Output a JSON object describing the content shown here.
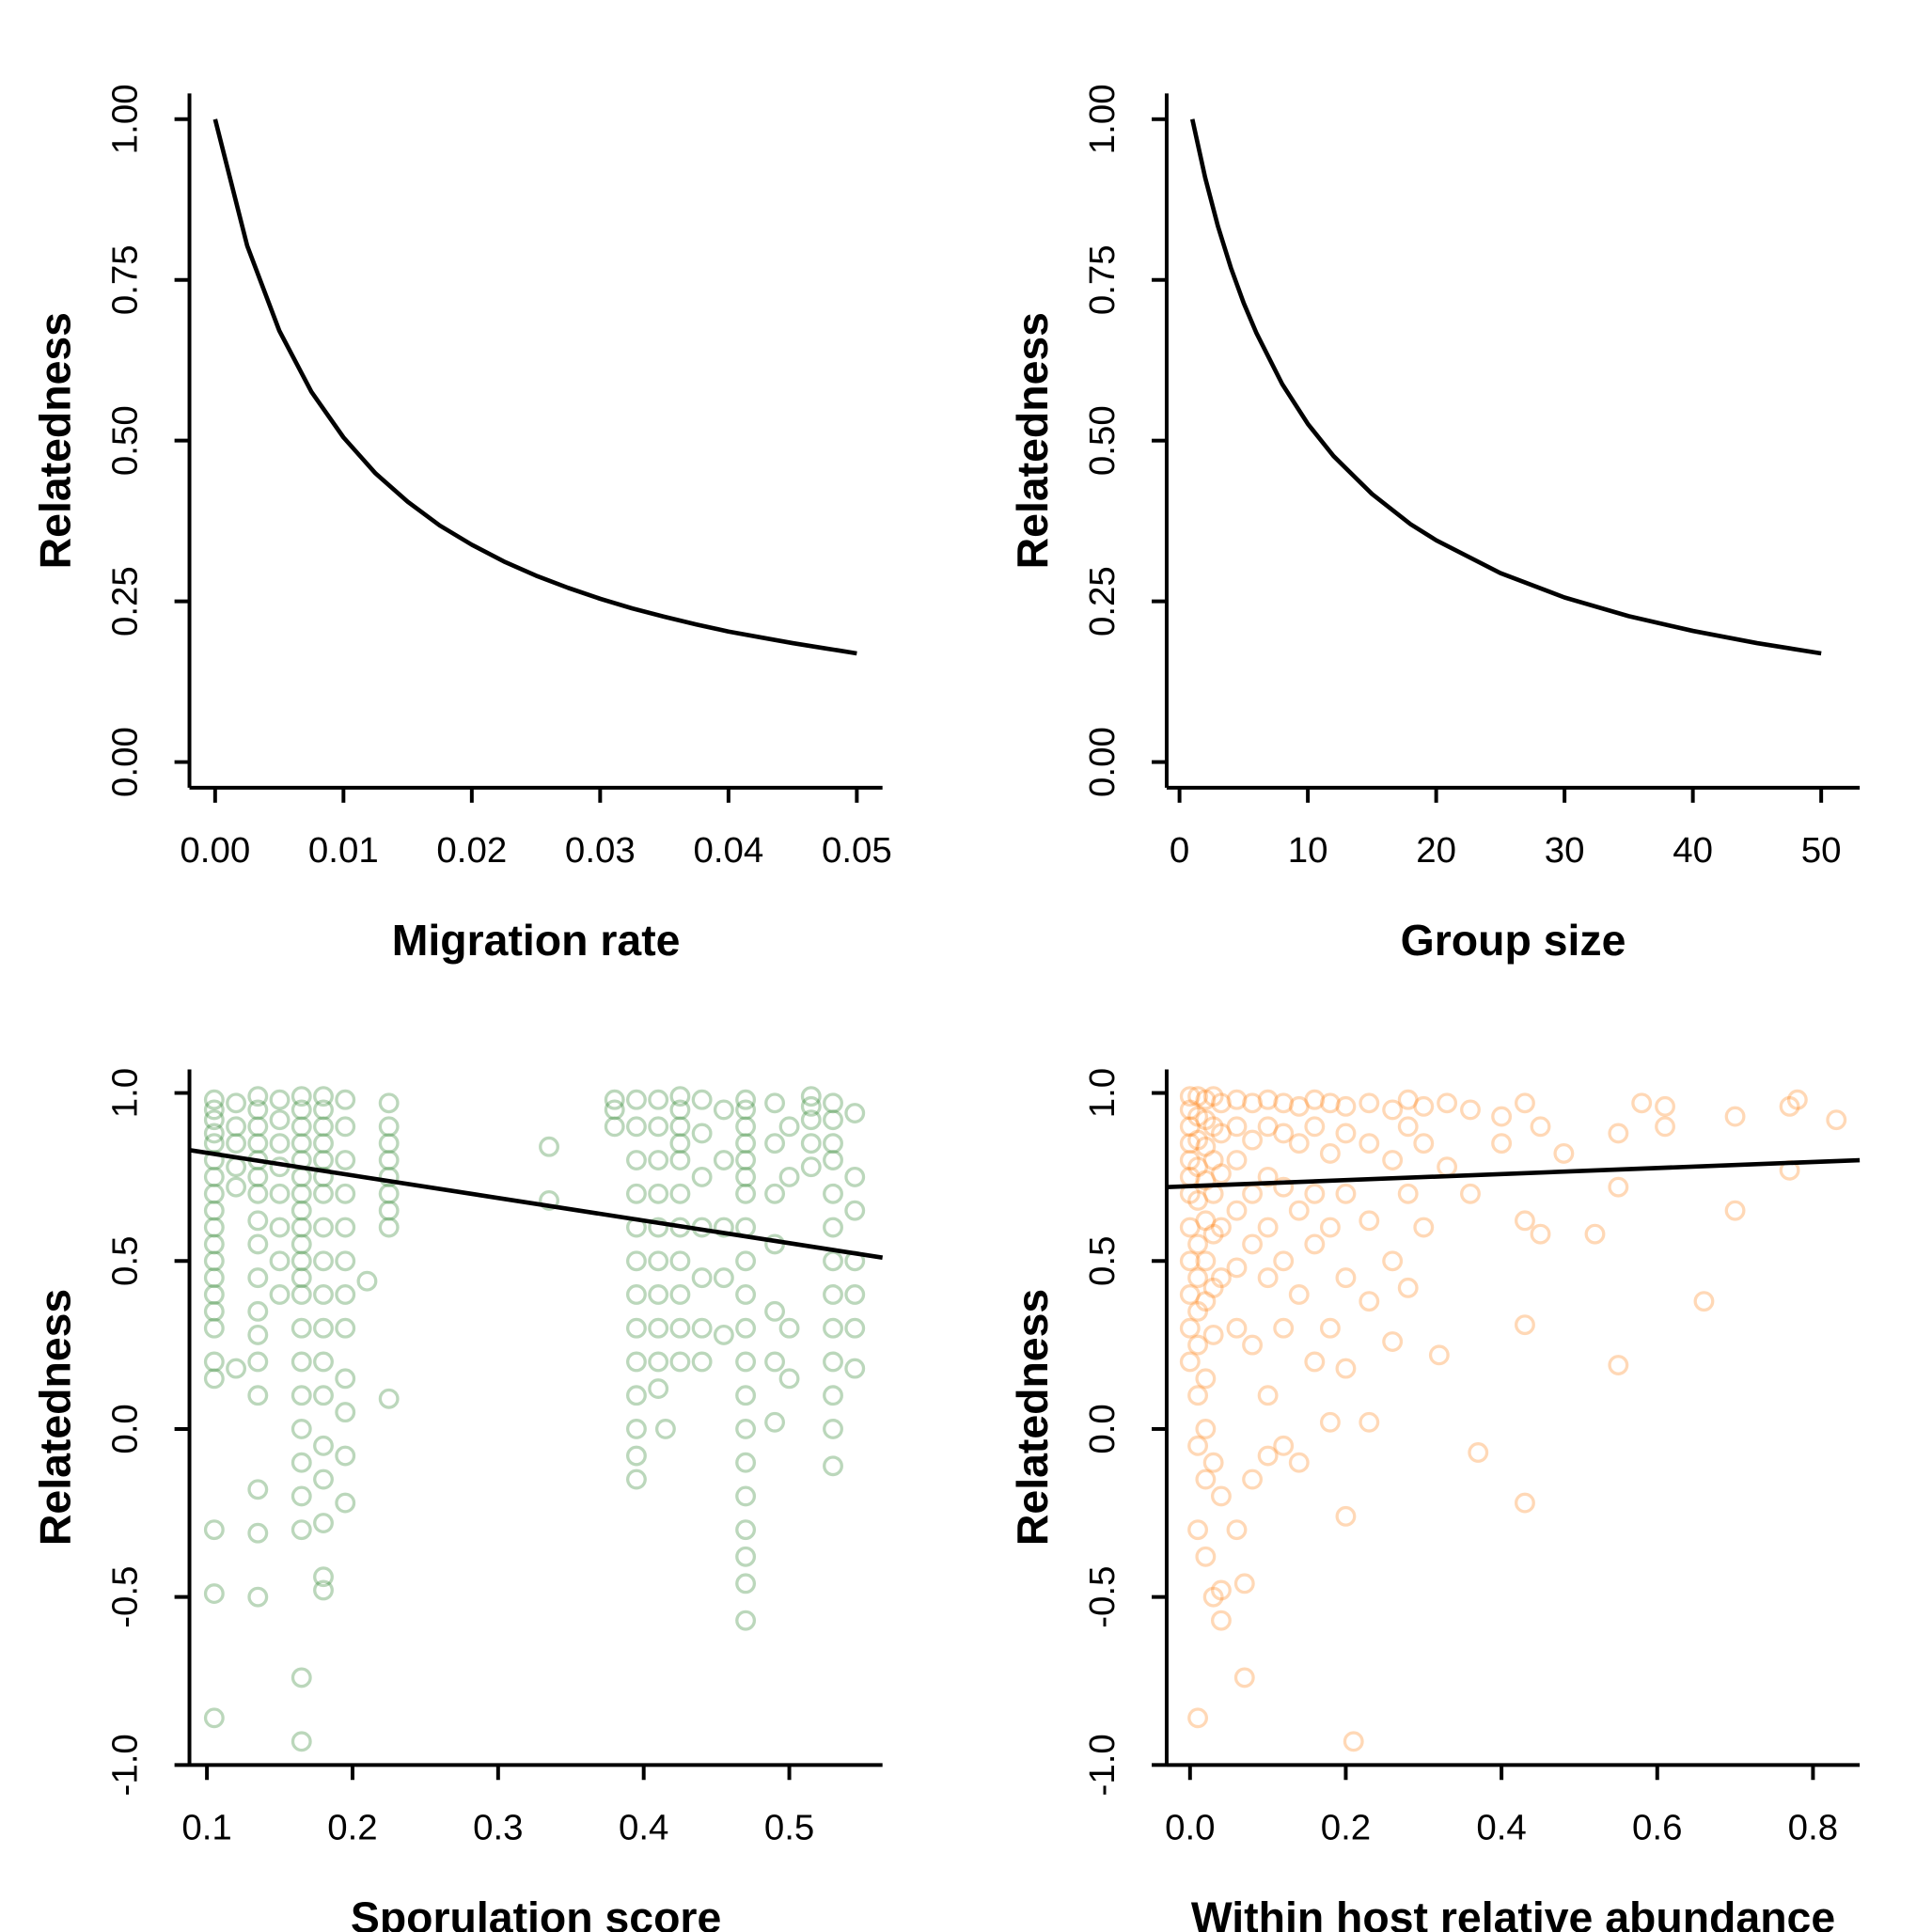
{
  "chart_data": [
    {
      "type": "line",
      "xlabel": "Migration rate",
      "ylabel": "Relatedness",
      "color": "#000000",
      "x": [
        0,
        0.0025,
        0.005,
        0.0075,
        0.01,
        0.0125,
        0.015,
        0.0175,
        0.02,
        0.0225,
        0.025,
        0.0275,
        0.03,
        0.0325,
        0.035,
        0.0375,
        0.04,
        0.0425,
        0.045,
        0.0475,
        0.05
      ],
      "values": [
        1,
        0.803,
        0.671,
        0.576,
        0.505,
        0.449,
        0.405,
        0.368,
        0.338,
        0.312,
        0.29,
        0.271,
        0.254,
        0.239,
        0.226,
        0.214,
        0.203,
        0.194,
        0.185,
        0.177,
        0.169
      ],
      "xlim": [
        -0.002,
        0.052
      ],
      "ylim": [
        -0.04,
        1.04
      ],
      "xticks": [
        {
          "value": 0,
          "label": "0.00"
        },
        {
          "value": 0.01,
          "label": "0.01"
        },
        {
          "value": 0.02,
          "label": "0.02"
        },
        {
          "value": 0.03,
          "label": "0.03"
        },
        {
          "value": 0.04,
          "label": "0.04"
        },
        {
          "value": 0.05,
          "label": "0.05"
        }
      ],
      "yticks": [
        {
          "value": 0,
          "label": "0.00"
        },
        {
          "value": 0.25,
          "label": "0.25"
        },
        {
          "value": 0.5,
          "label": "0.50"
        },
        {
          "value": 0.75,
          "label": "0.75"
        },
        {
          "value": 1,
          "label": "1.00"
        }
      ]
    },
    {
      "type": "line",
      "xlabel": "Group size",
      "ylabel": "Relatedness",
      "color": "#000000",
      "x": [
        1,
        2,
        3,
        4,
        5,
        6,
        8,
        10,
        12,
        15,
        18,
        20,
        25,
        30,
        35,
        40,
        45,
        50
      ],
      "values": [
        1,
        0.909,
        0.833,
        0.769,
        0.714,
        0.667,
        0.588,
        0.526,
        0.476,
        0.417,
        0.37,
        0.345,
        0.294,
        0.256,
        0.227,
        0.204,
        0.185,
        0.169
      ],
      "xlim": [
        -1,
        53
      ],
      "ylim": [
        -0.04,
        1.04
      ],
      "xticks": [
        0,
        10,
        20,
        30,
        40,
        50
      ],
      "yticks": [
        {
          "value": 0,
          "label": "0.00"
        },
        {
          "value": 0.25,
          "label": "0.25"
        },
        {
          "value": 0.5,
          "label": "0.50"
        },
        {
          "value": 0.75,
          "label": "0.75"
        },
        {
          "value": 1,
          "label": "1.00"
        }
      ]
    },
    {
      "type": "scatter",
      "xlabel": "Sporulation score",
      "ylabel": "Relatedness",
      "color": "#1f7a1f",
      "x": [
        0.105,
        0.105,
        0.105,
        0.105,
        0.105,
        0.105,
        0.105,
        0.105,
        0.105,
        0.105,
        0.105,
        0.105,
        0.105,
        0.105,
        0.105,
        0.105,
        0.105,
        0.105,
        0.105,
        0.105,
        0.105,
        0.12,
        0.12,
        0.12,
        0.12,
        0.12,
        0.12,
        0.135,
        0.135,
        0.135,
        0.135,
        0.135,
        0.135,
        0.135,
        0.135,
        0.135,
        0.135,
        0.135,
        0.135,
        0.135,
        0.135,
        0.135,
        0.135,
        0.135,
        0.15,
        0.15,
        0.15,
        0.15,
        0.15,
        0.15,
        0.15,
        0.15,
        0.165,
        0.165,
        0.165,
        0.165,
        0.165,
        0.165,
        0.165,
        0.165,
        0.165,
        0.165,
        0.165,
        0.165,
        0.165,
        0.165,
        0.165,
        0.165,
        0.165,
        0.165,
        0.165,
        0.165,
        0.165,
        0.165,
        0.18,
        0.18,
        0.18,
        0.18,
        0.18,
        0.18,
        0.18,
        0.18,
        0.18,
        0.18,
        0.18,
        0.18,
        0.18,
        0.18,
        0.18,
        0.18,
        0.18,
        0.18,
        0.195,
        0.195,
        0.195,
        0.195,
        0.195,
        0.195,
        0.195,
        0.195,
        0.195,
        0.195,
        0.195,
        0.195,
        0.225,
        0.225,
        0.225,
        0.225,
        0.225,
        0.225,
        0.225,
        0.225,
        0.225,
        0.21,
        0.335,
        0.335,
        0.38,
        0.38,
        0.38,
        0.395,
        0.395,
        0.395,
        0.395,
        0.395,
        0.395,
        0.395,
        0.395,
        0.395,
        0.395,
        0.395,
        0.395,
        0.395,
        0.41,
        0.41,
        0.41,
        0.41,
        0.41,
        0.41,
        0.41,
        0.41,
        0.41,
        0.41,
        0.415,
        0.425,
        0.425,
        0.425,
        0.425,
        0.425,
        0.425,
        0.425,
        0.425,
        0.425,
        0.425,
        0.425,
        0.44,
        0.44,
        0.44,
        0.44,
        0.44,
        0.44,
        0.44,
        0.455,
        0.455,
        0.455,
        0.455,
        0.455,
        0.47,
        0.47,
        0.47,
        0.47,
        0.47,
        0.47,
        0.47,
        0.47,
        0.47,
        0.47,
        0.47,
        0.47,
        0.47,
        0.47,
        0.47,
        0.47,
        0.47,
        0.47,
        0.47,
        0.47,
        0.49,
        0.49,
        0.49,
        0.49,
        0.49,
        0.49,
        0.49,
        0.5,
        0.5,
        0.5,
        0.5,
        0.515,
        0.515,
        0.515,
        0.515,
        0.515,
        0.53,
        0.53,
        0.53,
        0.53,
        0.53,
        0.53,
        0.53,
        0.53,
        0.53,
        0.53,
        0.53,
        0.53,
        0.53,
        0.545,
        0.545,
        0.545,
        0.545,
        0.545,
        0.545,
        0.545
      ],
      "values": [
        0.98,
        0.95,
        0.92,
        0.88,
        0.85,
        0.8,
        0.75,
        0.7,
        0.65,
        0.6,
        0.55,
        0.5,
        0.45,
        0.4,
        0.35,
        0.3,
        0.2,
        0.15,
        -0.3,
        -0.49,
        -0.86,
        0.97,
        0.9,
        0.85,
        0.78,
        0.72,
        0.18,
        0.99,
        0.95,
        0.9,
        0.85,
        0.8,
        0.75,
        0.7,
        0.62,
        0.55,
        0.45,
        0.35,
        0.28,
        0.2,
        0.1,
        -0.18,
        -0.31,
        -0.5,
        0.98,
        0.92,
        0.85,
        0.78,
        0.7,
        0.6,
        0.5,
        0.4,
        0.99,
        0.95,
        0.9,
        0.85,
        0.8,
        0.75,
        0.7,
        0.65,
        0.6,
        0.55,
        0.5,
        0.45,
        0.4,
        0.3,
        0.2,
        0.1,
        0,
        -0.1,
        -0.2,
        -0.3,
        -0.74,
        -0.93,
        0.99,
        0.95,
        0.9,
        0.85,
        0.8,
        0.75,
        0.7,
        0.6,
        0.5,
        0.4,
        0.3,
        0.2,
        0.1,
        -0.05,
        -0.15,
        -0.28,
        -0.44,
        -0.48,
        0.98,
        0.9,
        0.8,
        0.7,
        0.6,
        0.5,
        0.4,
        0.3,
        0.15,
        0.05,
        -0.08,
        -0.22,
        0.97,
        0.9,
        0.85,
        0.8,
        0.75,
        0.7,
        0.65,
        0.6,
        0.09,
        0.44,
        0.84,
        0.68,
        0.98,
        0.95,
        0.9,
        0.98,
        0.9,
        0.8,
        0.7,
        0.6,
        0.5,
        0.4,
        0.3,
        0.2,
        0.1,
        0,
        -0.08,
        -0.15,
        0.98,
        0.9,
        0.8,
        0.7,
        0.6,
        0.5,
        0.4,
        0.3,
        0.2,
        0.12,
        0.0,
        0.99,
        0.95,
        0.9,
        0.85,
        0.8,
        0.7,
        0.6,
        0.5,
        0.4,
        0.3,
        0.2,
        0.98,
        0.88,
        0.75,
        0.6,
        0.45,
        0.3,
        0.2,
        0.95,
        0.8,
        0.6,
        0.45,
        0.28,
        0.98,
        0.95,
        0.9,
        0.85,
        0.8,
        0.75,
        0.7,
        0.6,
        0.5,
        0.4,
        0.3,
        0.2,
        0.1,
        0,
        -0.1,
        -0.2,
        -0.3,
        -0.38,
        -0.46,
        -0.57,
        0.97,
        0.85,
        0.7,
        0.55,
        0.35,
        0.2,
        0.02,
        0.9,
        0.75,
        0.3,
        0.15,
        0.99,
        0.96,
        0.92,
        0.85,
        0.78,
        0.97,
        0.92,
        0.85,
        0.8,
        0.7,
        0.6,
        0.5,
        0.4,
        0.3,
        0.2,
        0.1,
        0,
        -0.11,
        0.94,
        0.75,
        0.65,
        0.5,
        0.4,
        0.3,
        0.18
      ],
      "fit": {
        "x": [
          0.088,
          0.564
        ],
        "values": [
          0.83,
          0.51
        ],
        "color": "#000000"
      },
      "xlim": [
        0.088,
        0.564
      ],
      "ylim": [
        -1.0,
        1.07
      ],
      "xticks": [
        0.1,
        0.2,
        0.3,
        0.4,
        0.5
      ],
      "yticks": [
        {
          "value": -1,
          "label": "-1.0"
        },
        {
          "value": -0.5,
          "label": "-0.5"
        },
        {
          "value": 0,
          "label": "0.0"
        },
        {
          "value": 0.5,
          "label": "0.5"
        },
        {
          "value": 1,
          "label": "1.0"
        }
      ]
    },
    {
      "type": "scatter",
      "xlabel": "Within host relative abundance",
      "ylabel": "Relatedness",
      "color": "#ff7f0e",
      "x": [
        0,
        0,
        0,
        0,
        0,
        0,
        0,
        0,
        0,
        0,
        0,
        0,
        0.01,
        0.01,
        0.01,
        0.01,
        0.01,
        0.01,
        0.01,
        0.01,
        0.01,
        0.01,
        0.01,
        0.01,
        0.01,
        0.02,
        0.02,
        0.02,
        0.02,
        0.02,
        0.02,
        0.02,
        0.02,
        0.02,
        0.02,
        0.02,
        0.03,
        0.03,
        0.03,
        0.03,
        0.03,
        0.03,
        0.03,
        0.03,
        0.03,
        0.04,
        0.04,
        0.04,
        0.04,
        0.04,
        0.04,
        0.04,
        0.04,
        0.06,
        0.06,
        0.06,
        0.06,
        0.06,
        0.06,
        0.06,
        0.07,
        0.07,
        0.08,
        0.08,
        0.08,
        0.08,
        0.08,
        0.08,
        0.1,
        0.1,
        0.1,
        0.1,
        0.1,
        0.1,
        0.1,
        0.12,
        0.12,
        0.12,
        0.12,
        0.12,
        0.12,
        0.14,
        0.14,
        0.14,
        0.14,
        0.14,
        0.16,
        0.16,
        0.16,
        0.16,
        0.16,
        0.18,
        0.18,
        0.18,
        0.18,
        0.18,
        0.2,
        0.2,
        0.2,
        0.2,
        0.2,
        0.2,
        0.21,
        0.23,
        0.23,
        0.23,
        0.23,
        0.23,
        0.26,
        0.26,
        0.26,
        0.26,
        0.28,
        0.28,
        0.28,
        0.28,
        0.3,
        0.3,
        0.3,
        0.32,
        0.33,
        0.33,
        0.36,
        0.36,
        0.37,
        0.4,
        0.4,
        0.43,
        0.43,
        0.43,
        0.43,
        0.45,
        0.45,
        0.48,
        0.52,
        0.55,
        0.55,
        0.55,
        0.58,
        0.61,
        0.61,
        0.66,
        0.7,
        0.7,
        0.77,
        0.77,
        0.78,
        0.83
      ],
      "values": [
        0.99,
        0.95,
        0.9,
        0.85,
        0.8,
        0.75,
        0.7,
        0.6,
        0.5,
        0.4,
        0.3,
        0.2,
        0.99,
        0.93,
        0.86,
        0.78,
        0.68,
        0.55,
        0.45,
        0.35,
        0.25,
        0.1,
        -0.05,
        -0.3,
        -0.86,
        0.98,
        0.92,
        0.84,
        0.74,
        0.62,
        0.5,
        0.38,
        0.15,
        0.0,
        -0.15,
        -0.38,
        0.99,
        0.9,
        0.8,
        0.7,
        0.58,
        0.42,
        0.28,
        -0.1,
        -0.5,
        0.97,
        0.88,
        0.76,
        0.6,
        0.45,
        -0.2,
        -0.48,
        -0.57,
        0.98,
        0.9,
        0.8,
        0.65,
        0.48,
        0.3,
        -0.3,
        -0.74,
        -0.46,
        0.97,
        0.86,
        0.7,
        0.55,
        0.25,
        -0.15,
        0.98,
        0.9,
        0.75,
        0.6,
        0.45,
        0.1,
        -0.08,
        0.97,
        0.88,
        0.72,
        0.5,
        0.3,
        -0.05,
        0.96,
        0.85,
        0.65,
        0.4,
        -0.1,
        0.98,
        0.9,
        0.7,
        0.55,
        0.2,
        0.97,
        0.82,
        0.6,
        0.3,
        0.02,
        0.96,
        0.88,
        0.7,
        0.45,
        0.18,
        -0.26,
        -0.93,
        0.97,
        0.85,
        0.62,
        0.38,
        0.02,
        0.95,
        0.8,
        0.5,
        0.26,
        0.98,
        0.9,
        0.7,
        0.42,
        0.96,
        0.85,
        0.6,
        0.22,
        0.97,
        0.78,
        0.95,
        0.7,
        -0.07,
        0.93,
        0.85,
        0.97,
        0.62,
        0.31,
        -0.22,
        0.9,
        0.58,
        0.82,
        0.58,
        0.88,
        0.72,
        0.19,
        0.97,
        0.96,
        0.9,
        0.38,
        0.93,
        0.65,
        0.96,
        0.77,
        0.98,
        0.92
      ],
      "fit": {
        "x": [
          -0.03,
          0.86
        ],
        "values": [
          0.72,
          0.8
        ],
        "color": "#000000"
      },
      "xlim": [
        -0.03,
        0.86
      ],
      "ylim": [
        -1.0,
        1.07
      ],
      "xticks": [
        {
          "value": 0,
          "label": "0.0"
        },
        {
          "value": 0.2,
          "label": "0.2"
        },
        {
          "value": 0.4,
          "label": "0.4"
        },
        {
          "value": 0.6,
          "label": "0.6"
        },
        {
          "value": 0.8,
          "label": "0.8"
        }
      ],
      "yticks": [
        {
          "value": -1,
          "label": "-1.0"
        },
        {
          "value": -0.5,
          "label": "-0.5"
        },
        {
          "value": 0,
          "label": "0.0"
        },
        {
          "value": 0.5,
          "label": "0.5"
        },
        {
          "value": 1,
          "label": "1.0"
        }
      ]
    }
  ]
}
